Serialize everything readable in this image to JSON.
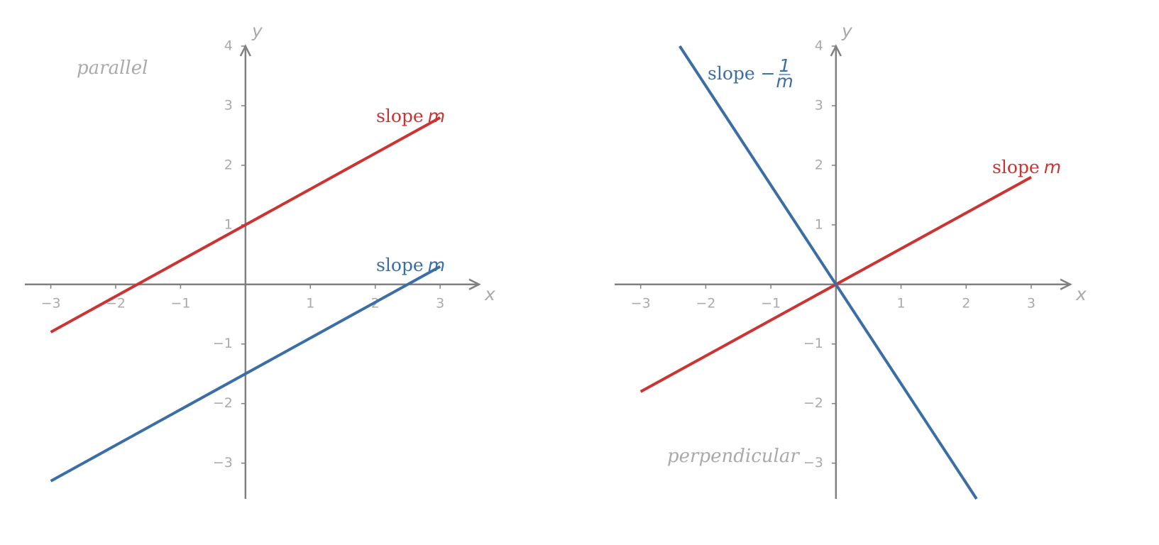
{
  "chart_data": [
    {
      "type": "line",
      "xlabel": "x",
      "ylabel": "y",
      "annotation": "parallel",
      "xlim": [
        -3.4,
        3.6
      ],
      "ylim": [
        -3.6,
        4
      ],
      "xticks": [
        {
          "value": -3,
          "label": "−3"
        },
        {
          "value": -2,
          "label": "−2"
        },
        {
          "value": -1,
          "label": "−1"
        },
        1,
        2,
        3
      ],
      "yticks": [
        {
          "value": -3,
          "label": "−3"
        },
        {
          "value": -2,
          "label": "−2"
        },
        {
          "value": -1,
          "label": "−1"
        },
        1,
        2,
        3,
        4
      ],
      "series": [
        {
          "name": "slope",
          "name_math": "m",
          "color": "#cc3333",
          "x": [
            -3,
            3
          ],
          "values": [
            -0.8,
            2.8
          ]
        },
        {
          "name": "slope",
          "name_math": "m",
          "color": "#3a6ea5",
          "x": [
            -3,
            3
          ],
          "values": [
            -3.3,
            0.3
          ]
        }
      ]
    },
    {
      "type": "line",
      "xlabel": "x",
      "ylabel": "y",
      "annotation": "perpendicular",
      "xlim": [
        -3.4,
        3.6
      ],
      "ylim": [
        -3.6,
        4
      ],
      "xticks": [
        {
          "value": -3,
          "label": "−3"
        },
        {
          "value": -2,
          "label": "−2"
        },
        {
          "value": -1,
          "label": "−1"
        },
        1,
        2,
        3
      ],
      "yticks": [
        {
          "value": -3,
          "label": "−3"
        },
        {
          "value": -2,
          "label": "−2"
        },
        {
          "value": -1,
          "label": "−1"
        },
        1,
        2,
        3,
        4
      ],
      "series": [
        {
          "name": "slope",
          "name_math": "m",
          "color": "#cc3333",
          "x": [
            -3,
            3
          ],
          "values": [
            -1.8,
            1.8
          ]
        },
        {
          "name": "slope −",
          "name_numerator": "1",
          "name_denominator": "m",
          "color": "#3a6ea5",
          "x": [
            -2.4,
            2.16
          ],
          "values": [
            4,
            -3.6
          ]
        }
      ]
    }
  ]
}
